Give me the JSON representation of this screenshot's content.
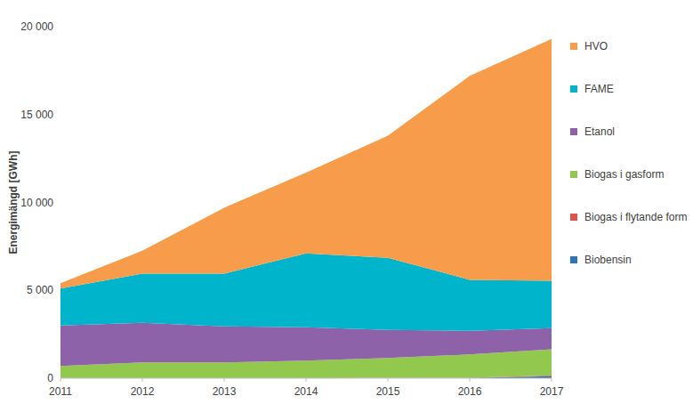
{
  "chart_data": {
    "type": "area",
    "stacked": true,
    "y_label": "Energimängd [GWh]",
    "x": [
      2011,
      2012,
      2013,
      2014,
      2015,
      2016,
      2017
    ],
    "xlim": [
      2011,
      2017
    ],
    "xticks": [
      2011,
      2012,
      2013,
      2014,
      2015,
      2016,
      2017
    ],
    "ylim": [
      0,
      20000
    ],
    "yticks": [
      0,
      {
        "value": 5000,
        "label": "5 000"
      },
      {
        "value": 10000,
        "label": "10 000"
      },
      {
        "value": 15000,
        "label": "15 000"
      },
      {
        "value": 20000,
        "label": "20 000"
      }
    ],
    "grid": false,
    "legend": "right",
    "series": [
      {
        "name": "Biobensin",
        "color": "#2e75b6",
        "values": [
          0,
          0,
          0,
          0,
          0,
          10,
          120
        ]
      },
      {
        "name": "Biogas i flytande form",
        "color": "#e0534a",
        "values": [
          0,
          0,
          0,
          5,
          10,
          20,
          30
        ]
      },
      {
        "name": "Biogas i gasform",
        "color": "#92c84e",
        "values": [
          700,
          900,
          900,
          995,
          1140,
          1320,
          1500
        ]
      },
      {
        "name": "Etanol",
        "color": "#8e62a8",
        "values": [
          2300,
          2250,
          2050,
          1900,
          1600,
          1350,
          1200
        ]
      },
      {
        "name": "FAME",
        "color": "#00b4cc",
        "values": [
          2100,
          2800,
          3000,
          4200,
          4100,
          2900,
          2700
        ]
      },
      {
        "name": "HVO",
        "color": "#f79c4a",
        "values": [
          300,
          1300,
          3750,
          4600,
          6950,
          11600,
          13750
        ]
      }
    ]
  }
}
